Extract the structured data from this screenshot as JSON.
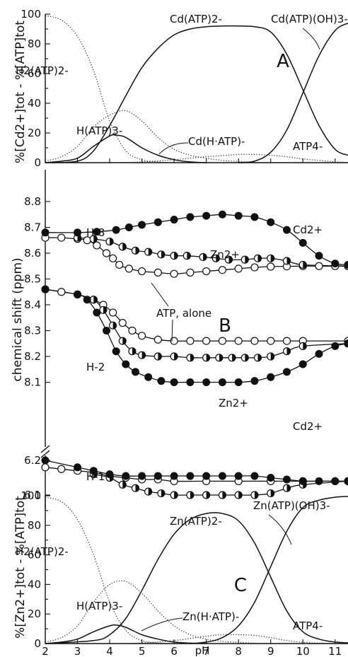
{
  "chart_data": [
    {
      "panel": "A",
      "type": "line",
      "ylabel": "%[Cd2+]tot - %[ATP]tot",
      "xlim": [
        2,
        11.4
      ],
      "ylim": [
        0,
        100
      ],
      "yticks": [
        0,
        20,
        40,
        60,
        80,
        100
      ],
      "series": [
        {
          "name": "H2(ATP)2-",
          "style": "dotted",
          "x": [
            2.0,
            2.5,
            3.0,
            3.5,
            4.0,
            4.5,
            5.0,
            5.5,
            6.0
          ],
          "y": [
            99,
            96,
            85,
            62,
            28,
            8,
            2,
            0.5,
            0
          ]
        },
        {
          "name": "H(ATP)3-",
          "style": "dotted",
          "x": [
            2.0,
            2.5,
            3.0,
            3.5,
            4.0,
            4.5,
            5.0,
            5.5,
            6.0,
            6.5,
            7.0,
            7.5,
            8.0,
            8.5,
            9.0
          ],
          "y": [
            1,
            4,
            11,
            24,
            32,
            35,
            28,
            17,
            9,
            5,
            3,
            1.5,
            0.8,
            0.3,
            0
          ]
        },
        {
          "name": "Cd(H·ATP)-",
          "style": "solid",
          "x": [
            2.0,
            2.5,
            3.0,
            3.5,
            4.0,
            4.2,
            4.5,
            5.0,
            5.5,
            6.0,
            6.5,
            7.0
          ],
          "y": [
            0,
            1,
            3,
            11,
            18,
            18.5,
            17,
            10,
            5,
            2,
            0.5,
            0
          ]
        },
        {
          "name": "Cd(ATP)2-",
          "style": "solid",
          "x": [
            2.0,
            3.0,
            3.5,
            4.0,
            4.5,
            5.0,
            5.5,
            6.0,
            6.5,
            7.0,
            7.5,
            8.0,
            8.5,
            9.0,
            9.5,
            10.0,
            10.5,
            11.0,
            11.4
          ],
          "y": [
            0,
            1,
            8,
            25,
            45,
            64,
            77,
            86,
            90,
            91.5,
            92,
            92,
            91.5,
            88,
            73,
            49,
            25,
            9,
            5
          ]
        },
        {
          "name": "Cd(ATP)(OH)3-",
          "style": "solid",
          "x": [
            8.0,
            8.5,
            9.0,
            9.5,
            10.0,
            10.5,
            11.0,
            11.4
          ],
          "y": [
            0,
            1,
            7,
            22,
            47,
            72,
            89,
            94
          ]
        },
        {
          "name": "ATP4-",
          "style": "dotted",
          "x": [
            2.0,
            4.0,
            5.0,
            6.0,
            7.0,
            8.0,
            8.5,
            9.0,
            9.5,
            10.0,
            10.5,
            11.0,
            11.4
          ],
          "y": [
            0,
            0,
            0.5,
            2,
            4,
            5.5,
            5.5,
            5,
            4,
            2.5,
            1.5,
            0.5,
            0.2
          ]
        }
      ],
      "labels": {
        "letter": "A",
        "h2atp": "H2(ATP)2-",
        "hatp": "H(ATP)3-",
        "cdhatp": "Cd(H·ATP)-",
        "cdatp": "Cd(ATP)2-",
        "cdatpoh": "Cd(ATP)(OH)3-",
        "atp4": "ATP4-"
      }
    },
    {
      "panel": "B",
      "type": "scatter",
      "ylabel": "chemical shift (ppm)",
      "xlim": [
        2,
        11.4
      ],
      "yticks_upper": [
        8.1,
        8.2,
        8.3,
        8.4,
        8.5,
        8.6,
        8.7,
        8.8
      ],
      "yticks_lower": [
        6.1,
        6.2
      ],
      "series": [
        {
          "name": "H-8 ATP alone",
          "marker": "open",
          "x": [
            2.0,
            2.5,
            3.0,
            3.3,
            3.6,
            3.9,
            4.1,
            4.3,
            4.6,
            5.0,
            5.5,
            6.0,
            6.5,
            7.0,
            7.5,
            8.0,
            8.5,
            9.0,
            9.5,
            10.0,
            10.5,
            11.0,
            11.4
          ],
          "y": [
            8.66,
            8.66,
            8.655,
            8.65,
            8.63,
            8.6,
            8.58,
            8.555,
            8.54,
            8.53,
            8.525,
            8.52,
            8.525,
            8.53,
            8.535,
            8.54,
            8.545,
            8.548,
            8.549,
            8.55,
            8.55,
            8.55,
            8.55
          ]
        },
        {
          "name": "H-8 Zn2+",
          "marker": "half",
          "x": [
            3.0,
            3.5,
            4.0,
            4.4,
            4.8,
            5.2,
            5.6,
            6.0,
            6.4,
            6.9,
            7.3,
            7.7,
            8.2,
            8.6,
            9.0,
            9.5,
            10.0,
            11.4
          ],
          "y": [
            8.66,
            8.655,
            8.645,
            8.625,
            8.61,
            8.605,
            8.595,
            8.59,
            8.59,
            8.585,
            8.58,
            8.575,
            8.575,
            8.58,
            8.58,
            8.57,
            8.555,
            8.55
          ]
        },
        {
          "name": "H-8 Cd2+",
          "marker": "filled",
          "x": [
            2.0,
            3.0,
            3.6,
            4.2,
            4.6,
            5.0,
            5.5,
            6.0,
            6.5,
            7.0,
            7.5,
            8.0,
            8.5,
            9.0,
            9.5,
            10.0,
            10.5,
            11.0,
            11.4
          ],
          "y": [
            8.68,
            8.68,
            8.683,
            8.69,
            8.7,
            8.71,
            8.72,
            8.73,
            8.74,
            8.745,
            8.75,
            8.745,
            8.74,
            8.72,
            8.69,
            8.64,
            8.59,
            8.56,
            8.555
          ]
        },
        {
          "name": "H-2 ATP alone",
          "marker": "open",
          "x": [
            2.0,
            2.5,
            3.0,
            3.5,
            3.8,
            4.1,
            4.4,
            4.7,
            5.0,
            5.5,
            6.0,
            6.5,
            7.0,
            7.5,
            8.0,
            8.5,
            9.0,
            9.5,
            10.0,
            11.4
          ],
          "y": [
            8.46,
            8.45,
            8.44,
            8.42,
            8.4,
            8.37,
            8.33,
            8.3,
            8.28,
            8.265,
            8.26,
            8.26,
            8.26,
            8.26,
            8.26,
            8.26,
            8.26,
            8.26,
            8.26,
            8.26
          ]
        },
        {
          "name": "H-2 Zn2+",
          "marker": "half",
          "x": [
            3.0,
            3.5,
            3.8,
            4.1,
            4.4,
            4.7,
            5.0,
            5.5,
            6.0,
            6.5,
            7.0,
            7.4,
            7.8,
            8.2,
            8.6,
            9.0,
            9.5,
            10.0,
            11.4
          ],
          "y": [
            8.44,
            8.42,
            8.38,
            8.32,
            8.26,
            8.22,
            8.205,
            8.2,
            8.2,
            8.195,
            8.195,
            8.195,
            8.195,
            8.195,
            8.195,
            8.2,
            8.22,
            8.24,
            8.25
          ]
        },
        {
          "name": "H-2 Cd2+",
          "marker": "filled",
          "x": [
            2.0,
            3.0,
            3.3,
            3.6,
            3.9,
            4.2,
            4.5,
            4.8,
            5.2,
            5.6,
            6.0,
            6.5,
            7.0,
            7.5,
            8.0,
            8.5,
            9.0,
            9.5,
            10.0,
            10.5,
            11.0,
            11.4
          ],
          "y": [
            8.46,
            8.44,
            8.42,
            8.37,
            8.3,
            8.22,
            8.17,
            8.14,
            8.12,
            8.105,
            8.1,
            8.1,
            8.1,
            8.1,
            8.1,
            8.105,
            8.12,
            8.14,
            8.17,
            8.21,
            8.24,
            8.25
          ]
        },
        {
          "name": "H-1' ATP alone",
          "marker": "open",
          "x": [
            2.0,
            2.5,
            3.0,
            3.5,
            4.0,
            4.5,
            5.0,
            5.5,
            6.0,
            7.0,
            8.0,
            9.0,
            10.0,
            11.0,
            11.4
          ],
          "y": [
            6.18,
            6.175,
            6.17,
            6.165,
            6.155,
            6.15,
            6.145,
            6.145,
            6.14,
            6.14,
            6.14,
            6.14,
            6.14,
            6.14,
            6.14
          ]
        },
        {
          "name": "H-1' Zn2+",
          "marker": "half",
          "x": [
            3.5,
            4.0,
            4.4,
            4.8,
            5.2,
            5.6,
            6.0,
            6.5,
            7.0,
            7.5,
            8.0,
            8.5,
            9.0,
            9.5,
            10.0,
            11.4
          ],
          "y": [
            6.16,
            6.15,
            6.13,
            6.12,
            6.11,
            6.105,
            6.1,
            6.1,
            6.1,
            6.1,
            6.1,
            6.1,
            6.105,
            6.12,
            6.13,
            6.14
          ]
        },
        {
          "name": "H-1' Cd2+",
          "marker": "filled",
          "x": [
            2.0,
            3.0,
            3.5,
            4.0,
            4.5,
            5.0,
            5.5,
            6.0,
            6.5,
            7.0,
            7.5,
            8.0,
            8.5,
            9.0,
            9.5,
            10.0,
            10.5,
            11.0,
            11.4
          ],
          "y": [
            6.2,
            6.18,
            6.17,
            6.16,
            6.155,
            6.155,
            6.155,
            6.155,
            6.155,
            6.155,
            6.155,
            6.155,
            6.155,
            6.15,
            6.145,
            6.14,
            6.14,
            6.14,
            6.14
          ]
        }
      ],
      "labels": {
        "letter": "B",
        "h8": "H-8",
        "h2": "H-2",
        "h1": "H-1'",
        "cd_top": "Cd2+",
        "zn_top": "Zn2+",
        "atp_alone": "ATP, alone",
        "zn_mid": "Zn2+",
        "cd_mid": "Cd2+"
      }
    },
    {
      "panel": "C",
      "type": "line",
      "ylabel": "%[Zn2+]tot - %[ATP]tot",
      "xlabel": "pH",
      "xlim": [
        2,
        11.4
      ],
      "ylim": [
        0,
        100
      ],
      "yticks": [
        0,
        20,
        40,
        60,
        80,
        100
      ],
      "xticks": [
        2,
        3,
        4,
        5,
        6,
        7,
        8,
        9,
        10,
        11
      ],
      "series": [
        {
          "name": "H2(ATP)2-",
          "style": "dotted",
          "x": [
            2.0,
            2.5,
            3.0,
            3.5,
            4.0,
            4.5,
            5.0,
            5.5,
            6.0
          ],
          "y": [
            99,
            96,
            84,
            60,
            28,
            9,
            2,
            0.5,
            0
          ]
        },
        {
          "name": "H(ATP)3-",
          "style": "dotted",
          "x": [
            2.0,
            2.5,
            3.0,
            3.5,
            4.0,
            4.5,
            5.0,
            5.5,
            6.0,
            6.5,
            7.0,
            7.5,
            8.0,
            8.5,
            9.0
          ],
          "y": [
            1,
            4,
            12,
            28,
            40,
            42,
            34,
            22,
            12,
            6,
            3,
            1.5,
            0.8,
            0.3,
            0
          ]
        },
        {
          "name": "Zn(H·ATP)-",
          "style": "solid",
          "x": [
            2.0,
            2.5,
            3.0,
            3.5,
            4.0,
            4.2,
            4.5,
            5.0,
            5.5,
            6.0,
            6.5,
            7.0
          ],
          "y": [
            0,
            1,
            3,
            8,
            12,
            12.5,
            11,
            6,
            3,
            1,
            0.3,
            0
          ]
        },
        {
          "name": "Zn(ATP)2-",
          "style": "solid",
          "x": [
            2.0,
            3.5,
            4.0,
            4.5,
            5.0,
            5.5,
            6.0,
            6.5,
            7.0,
            7.5,
            8.0,
            8.5,
            9.0,
            9.5,
            10.0,
            10.5,
            11.0,
            11.4
          ],
          "y": [
            0,
            2,
            6,
            17,
            36,
            57,
            74,
            84,
            88,
            88,
            83,
            68,
            45,
            22,
            8,
            3,
            1,
            0.5
          ]
        },
        {
          "name": "Zn(ATP)(OH)3-",
          "style": "solid",
          "x": [
            6.5,
            7.0,
            7.5,
            8.0,
            8.5,
            9.0,
            9.5,
            10.0,
            10.5,
            11.0,
            11.4
          ],
          "y": [
            0,
            1,
            4,
            12,
            28,
            52,
            76,
            92,
            97,
            99,
            99.5
          ]
        },
        {
          "name": "ATP4-",
          "style": "dotted",
          "x": [
            2.0,
            4.0,
            5.0,
            6.0,
            7.0,
            7.5,
            8.0,
            8.5,
            9.0,
            9.5,
            10.0,
            10.5,
            11.0,
            11.4
          ],
          "y": [
            0,
            0,
            0.5,
            2,
            5,
            6,
            6,
            5.5,
            4,
            2,
            0.8,
            0.3,
            0.1,
            0
          ]
        }
      ],
      "labels": {
        "letter": "C",
        "h2atp": "H2(ATP)2-",
        "hatp": "H(ATP)3-",
        "znhatp": "Zn(H·ATP)-",
        "znatp": "Zn(ATP)2-",
        "znatpoh": "Zn(ATP)(OH)3-",
        "atp4": "ATP4-",
        "xlabel": "pH"
      }
    }
  ]
}
